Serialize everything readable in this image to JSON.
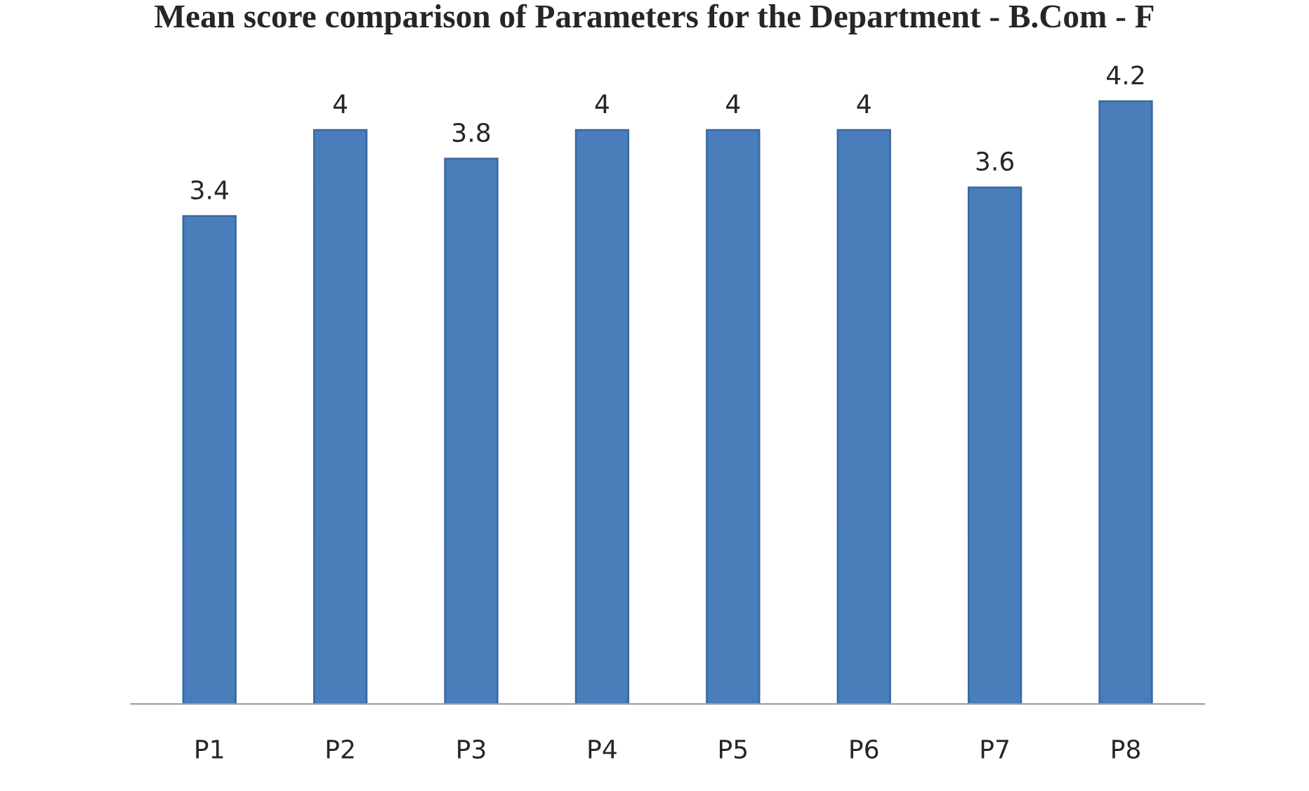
{
  "chart_data": {
    "type": "bar",
    "title": "Mean score comparison of Parameters for the Department - B.Com - F",
    "categories": [
      "P1",
      "P2",
      "P3",
      "P4",
      "P5",
      "P6",
      "P7",
      "P8"
    ],
    "values": [
      3.4,
      4,
      3.8,
      4,
      4,
      4,
      3.6,
      4.2
    ],
    "color": "#4a7ebb",
    "data_labels": true,
    "grid": false,
    "legend": false
  }
}
